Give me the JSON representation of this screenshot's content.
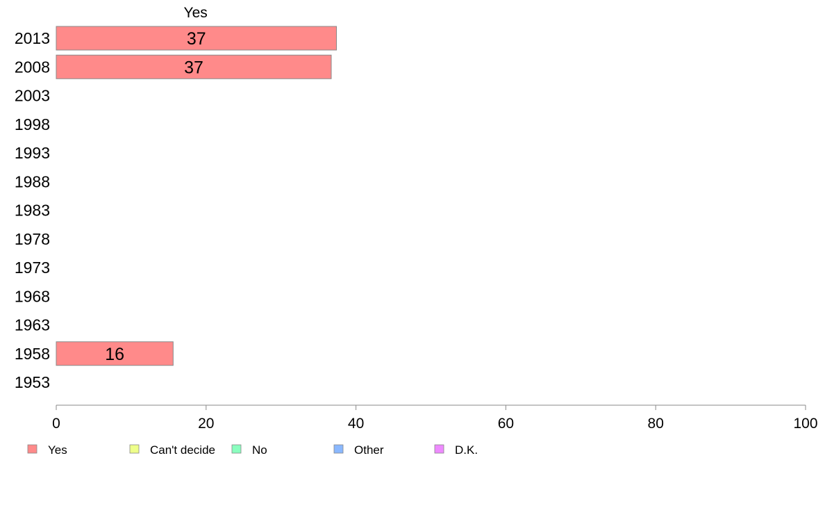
{
  "chart_data": {
    "type": "bar",
    "orientation": "horizontal",
    "stacked": true,
    "categories": [
      "2013",
      "2008",
      "2003",
      "1998",
      "1993",
      "1988",
      "1983",
      "1978",
      "1973",
      "1968",
      "1963",
      "1958",
      "1953"
    ],
    "series": [
      {
        "name": "Yes",
        "color": "#ff8a8a",
        "values": [
          37.4,
          36.7,
          null,
          null,
          null,
          null,
          null,
          null,
          null,
          null,
          null,
          15.6,
          null
        ],
        "labels": [
          "37",
          "37",
          "",
          "",
          "",
          "",
          "",
          "",
          "",
          "",
          "",
          "16",
          ""
        ]
      },
      {
        "name": "Can't decide",
        "color": "#eeff8a",
        "values": [
          null,
          null,
          null,
          null,
          null,
          null,
          null,
          null,
          null,
          null,
          null,
          null,
          null
        ]
      },
      {
        "name": "No",
        "color": "#8affbf",
        "values": [
          null,
          null,
          null,
          null,
          null,
          null,
          null,
          null,
          null,
          null,
          null,
          null,
          null
        ]
      },
      {
        "name": "Other",
        "color": "#8ab8ff",
        "values": [
          null,
          null,
          null,
          null,
          null,
          null,
          null,
          null,
          null,
          null,
          null,
          null,
          null
        ]
      },
      {
        "name": "D.K.",
        "color": "#ee8aff",
        "values": [
          null,
          null,
          null,
          null,
          null,
          null,
          null,
          null,
          null,
          null,
          null,
          null,
          null
        ]
      }
    ],
    "column_header": "Yes",
    "xlim": [
      0,
      100
    ],
    "xticks": [
      0,
      20,
      40,
      60,
      80,
      100
    ],
    "xtick_labels": [
      "0",
      "20",
      "40",
      "60",
      "80",
      "100"
    ],
    "grid": false,
    "legend_position": "bottom"
  }
}
